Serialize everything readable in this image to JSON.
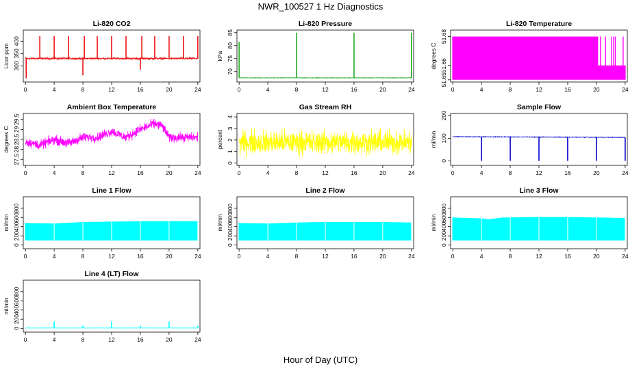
{
  "figure": {
    "title": "NWR_100527  1 Hz Diagnostics",
    "xlabel": "Hour of Day (UTC)"
  },
  "chart_data": [
    {
      "type": "line",
      "title": "Li-820 CO2",
      "ylabel": "Licor ppm",
      "color": "#ee1111",
      "xlim": [
        -0.3,
        24.3
      ],
      "ylim": [
        235,
        445
      ],
      "xticks": [
        0,
        4,
        8,
        12,
        16,
        20,
        24
      ],
      "yticks": [
        300,
        350,
        400
      ],
      "baseline": 328,
      "noise": 6,
      "drift": [
        [
          0,
          330
        ],
        [
          24,
          330
        ]
      ],
      "spikes_up": [
        [
          2.0,
          420
        ],
        [
          4.0,
          420
        ],
        [
          6.0,
          420
        ],
        [
          8.2,
          420
        ],
        [
          10.0,
          420
        ],
        [
          12.0,
          420
        ],
        [
          14.0,
          420
        ],
        [
          16.2,
          420
        ],
        [
          18.0,
          420
        ],
        [
          20.0,
          420
        ],
        [
          22.0,
          420
        ],
        [
          24.0,
          420
        ]
      ],
      "spikes_down": [
        [
          0.1,
          250
        ],
        [
          8.0,
          262
        ],
        [
          16.0,
          285
        ]
      ]
    },
    {
      "type": "line",
      "title": "Li-820 Pressure",
      "ylabel": "kPa",
      "color": "#22aa22",
      "xlim": [
        -0.3,
        24.3
      ],
      "ylim": [
        66,
        86
      ],
      "xticks": [
        0,
        4,
        8,
        12,
        16,
        20,
        24
      ],
      "yticks": [
        70,
        75,
        80,
        85
      ],
      "baseline": 67.6,
      "noise": 0.15,
      "drift": [
        [
          0,
          67.6
        ],
        [
          24,
          67.6
        ]
      ],
      "spikes_up": [
        [
          0.0,
          81.5
        ],
        [
          8.0,
          85
        ],
        [
          16.0,
          85
        ],
        [
          24.0,
          85
        ]
      ],
      "spikes_down": []
    },
    {
      "type": "line",
      "title": "Li-820 Temperature",
      "ylabel": "degrees C",
      "color": "#ff00ff",
      "xlim": [
        -0.3,
        24.3
      ],
      "ylim": [
        51.6485,
        51.6845
      ],
      "xticks": [
        0,
        4,
        8,
        12,
        16,
        20,
        24
      ],
      "yticks": [
        51.65,
        51.66,
        51.68
      ],
      "digital": {
        "low": 51.65,
        "high": 51.68,
        "mid": 51.66,
        "dense_until": 20.2,
        "mid_from": 20.2
      }
    },
    {
      "type": "line",
      "title": "Ambient Box Temperature",
      "ylabel": "degrees C",
      "color": "#ff00ff",
      "xlim": [
        -0.3,
        24.3
      ],
      "ylim": [
        27.2,
        29.8
      ],
      "xticks": [
        0,
        4,
        8,
        12,
        16,
        20,
        24
      ],
      "yticks": [
        27.5,
        28.0,
        28.5,
        29.0,
        29.5
      ],
      "noise": 0.35,
      "drift": [
        [
          0,
          28.4
        ],
        [
          2,
          28.2
        ],
        [
          4,
          28.5
        ],
        [
          6,
          28.3
        ],
        [
          8,
          28.6
        ],
        [
          10,
          28.6
        ],
        [
          12,
          28.9
        ],
        [
          14,
          28.6
        ],
        [
          16,
          29.0
        ],
        [
          18,
          29.3
        ],
        [
          19,
          29.2
        ],
        [
          20,
          28.6
        ],
        [
          22,
          28.6
        ],
        [
          24,
          28.6
        ]
      ],
      "spikes_up": [],
      "spikes_down": []
    },
    {
      "type": "line",
      "title": "Gas Stream RH",
      "ylabel": "percent",
      "color": "#ffff00",
      "xlim": [
        -0.3,
        24.3
      ],
      "ylim": [
        -0.2,
        4.3
      ],
      "xticks": [
        0,
        4,
        8,
        12,
        16,
        20,
        24
      ],
      "yticks": [
        0,
        1,
        2,
        3,
        4
      ],
      "noise": 1.5,
      "drift": [
        [
          0,
          1.8
        ],
        [
          24,
          1.8
        ]
      ],
      "spikes_up": [],
      "spikes_down": []
    },
    {
      "type": "line",
      "title": "Sample Flow",
      "ylabel": "ml/min",
      "color": "#0000cc",
      "xlim": [
        -0.3,
        24.3
      ],
      "ylim": [
        -20,
        210
      ],
      "xticks": [
        0,
        4,
        8,
        12,
        16,
        20,
        24
      ],
      "yticks": [
        0,
        100,
        200
      ],
      "baseline": 105,
      "noise": 2,
      "drift": [
        [
          0,
          107
        ],
        [
          24,
          104
        ]
      ],
      "spikes_up": [],
      "spikes_down": [
        [
          4.0,
          0
        ],
        [
          8.0,
          0
        ],
        [
          12.0,
          0
        ],
        [
          16.0,
          0
        ],
        [
          20.0,
          0
        ],
        [
          24.0,
          0
        ]
      ]
    },
    {
      "type": "line",
      "title": "Line 1 Flow",
      "ylabel": "ml/min",
      "color": "#00ffff",
      "xlim": [
        -0.3,
        24.3
      ],
      "ylim": [
        -80,
        1050
      ],
      "xticks": [
        0,
        4,
        8,
        12,
        16,
        20,
        24
      ],
      "yticks": [
        0,
        200,
        400,
        600,
        800
      ],
      "band": {
        "low": 100,
        "high": [
          [
            0,
            480
          ],
          [
            4,
            470
          ],
          [
            8,
            500
          ],
          [
            12,
            510
          ],
          [
            16,
            520
          ],
          [
            20,
            520
          ],
          [
            24,
            520
          ]
        ],
        "gaps": [
          4.0,
          8.0,
          12.0,
          16.0,
          20.0,
          24.0
        ]
      }
    },
    {
      "type": "line",
      "title": "Line 2 Flow",
      "ylabel": "ml/min",
      "color": "#00ffff",
      "xlim": [
        -0.3,
        24.3
      ],
      "ylim": [
        -80,
        1050
      ],
      "xticks": [
        0,
        4,
        8,
        12,
        16,
        20,
        24
      ],
      "yticks": [
        0,
        200,
        400,
        600,
        800
      ],
      "band": {
        "low": 100,
        "high": [
          [
            0,
            480
          ],
          [
            4,
            470
          ],
          [
            8,
            490
          ],
          [
            12,
            500
          ],
          [
            16,
            500
          ],
          [
            20,
            500
          ],
          [
            24,
            490
          ]
        ],
        "gaps": [
          4.0,
          8.0,
          12.0,
          16.0,
          20.0,
          24.0
        ]
      }
    },
    {
      "type": "line",
      "title": "Line 3 Flow",
      "ylabel": "ml/min",
      "color": "#00ffff",
      "xlim": [
        -0.3,
        24.3
      ],
      "ylim": [
        -80,
        1050
      ],
      "xticks": [
        0,
        4,
        8,
        12,
        16,
        20,
        24
      ],
      "yticks": [
        0,
        200,
        400,
        600,
        800
      ],
      "band": {
        "low": 100,
        "high": [
          [
            0,
            600
          ],
          [
            4,
            580
          ],
          [
            5,
            560
          ],
          [
            7,
            600
          ],
          [
            12,
            610
          ],
          [
            16,
            610
          ],
          [
            20,
            600
          ],
          [
            24,
            590
          ]
        ],
        "gaps": [
          4.0,
          8.0,
          12.0,
          16.0,
          20.0,
          24.0
        ]
      }
    },
    {
      "type": "line",
      "title": "Line 4 (LT) Flow",
      "ylabel": "ml/min",
      "color": "#00ffff",
      "xlim": [
        -0.3,
        24.3
      ],
      "ylim": [
        -80,
        1050
      ],
      "xticks": [
        0,
        4,
        8,
        12,
        16,
        20,
        24
      ],
      "yticks": [
        0,
        200,
        400,
        600,
        800
      ],
      "baseline": 10,
      "noise": 3,
      "drift": [
        [
          0,
          10
        ],
        [
          24,
          10
        ]
      ],
      "spikes_up": [
        [
          4.0,
          150
        ],
        [
          8.0,
          60
        ],
        [
          12.0,
          150
        ],
        [
          16.0,
          60
        ],
        [
          20.0,
          150
        ],
        [
          24.0,
          60
        ]
      ],
      "spikes_down": []
    }
  ]
}
